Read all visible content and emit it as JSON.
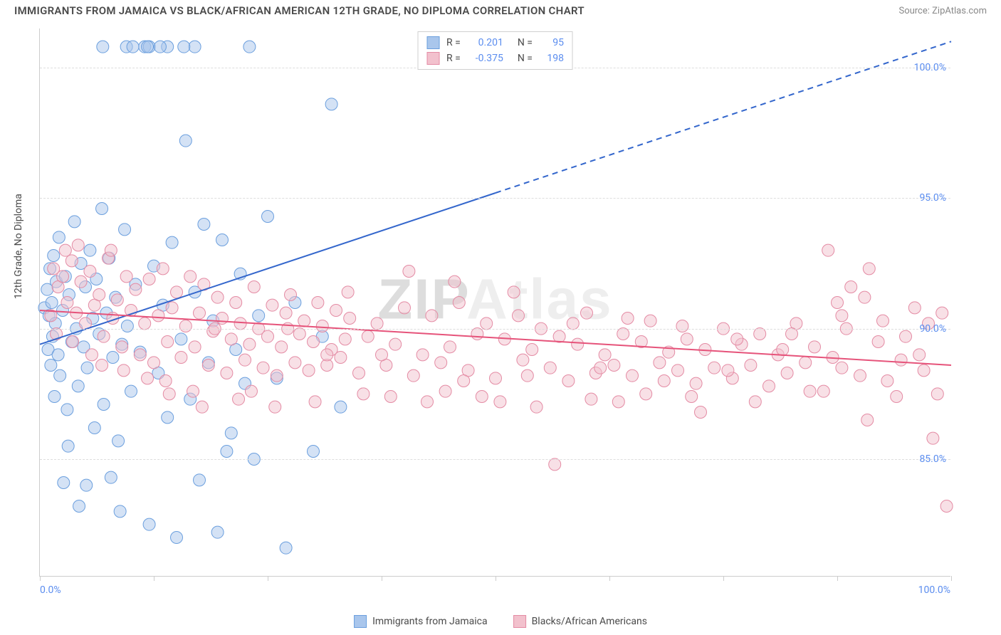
{
  "title": "IMMIGRANTS FROM JAMAICA VS BLACK/AFRICAN AMERICAN 12TH GRADE, NO DIPLOMA CORRELATION CHART",
  "source_label": "Source: ZipAtlas.com",
  "watermark_prefix": "ZIP",
  "watermark_suffix": "Atlas",
  "chart": {
    "type": "scatter",
    "ylabel": "12th Grade, No Diploma",
    "xlim": [
      0,
      100
    ],
    "ylim": [
      80.5,
      101.5
    ],
    "xtick_positions": [
      0,
      12.5,
      25,
      37.5,
      50,
      62.5,
      75,
      87.5,
      100
    ],
    "yticks": [
      85.0,
      90.0,
      95.0,
      100.0
    ],
    "ytick_labels": [
      "85.0%",
      "90.0%",
      "95.0%",
      "100.0%"
    ],
    "x_min_label": "0.0%",
    "x_max_label": "100.0%",
    "background_color": "#ffffff",
    "grid_color": "#dddddd",
    "axis_color": "#cccccc",
    "marker_radius": 8.5,
    "marker_opacity": 0.5,
    "line_width": 2,
    "series": [
      {
        "label": "Immigrants from Jamaica",
        "color_fill": "#a9c6ec",
        "color_stroke": "#6b9fde",
        "line_color": "#3366cc",
        "R": "0.201",
        "N": "95",
        "trend": {
          "x1": 0,
          "y1": 89.4,
          "x2": 100,
          "y2": 101.0,
          "solid_until_x": 50
        },
        "points": [
          [
            0.5,
            90.8
          ],
          [
            0.8,
            91.5
          ],
          [
            0.9,
            89.2
          ],
          [
            1.0,
            90.5
          ],
          [
            1.1,
            92.3
          ],
          [
            1.2,
            88.6
          ],
          [
            1.3,
            91.0
          ],
          [
            1.4,
            89.7
          ],
          [
            1.5,
            92.8
          ],
          [
            1.6,
            87.4
          ],
          [
            1.7,
            90.2
          ],
          [
            1.8,
            91.8
          ],
          [
            2.0,
            89.0
          ],
          [
            2.1,
            93.5
          ],
          [
            2.2,
            88.2
          ],
          [
            2.5,
            90.7
          ],
          [
            2.8,
            92.0
          ],
          [
            3.0,
            86.9
          ],
          [
            3.2,
            91.3
          ],
          [
            3.5,
            89.5
          ],
          [
            3.8,
            94.1
          ],
          [
            4.0,
            90.0
          ],
          [
            4.2,
            87.8
          ],
          [
            4.5,
            92.5
          ],
          [
            4.8,
            89.3
          ],
          [
            5.0,
            91.6
          ],
          [
            5.2,
            88.5
          ],
          [
            5.5,
            93.0
          ],
          [
            5.8,
            90.4
          ],
          [
            6.0,
            86.2
          ],
          [
            6.2,
            91.9
          ],
          [
            6.5,
            89.8
          ],
          [
            6.8,
            94.6
          ],
          [
            7.0,
            87.1
          ],
          [
            7.3,
            90.6
          ],
          [
            7.6,
            92.7
          ],
          [
            8.0,
            88.9
          ],
          [
            8.3,
            91.2
          ],
          [
            8.6,
            85.7
          ],
          [
            9.0,
            89.4
          ],
          [
            9.3,
            93.8
          ],
          [
            9.6,
            90.1
          ],
          [
            10.0,
            87.6
          ],
          [
            10.5,
            91.7
          ],
          [
            11.0,
            89.1
          ],
          [
            11.5,
            100.8
          ],
          [
            12.0,
            100.8
          ],
          [
            12.0,
            82.5
          ],
          [
            12.5,
            92.4
          ],
          [
            13.0,
            88.3
          ],
          [
            13.5,
            90.9
          ],
          [
            14.0,
            100.8
          ],
          [
            14.0,
            86.6
          ],
          [
            14.5,
            93.3
          ],
          [
            15.0,
            82.0
          ],
          [
            15.5,
            89.6
          ],
          [
            16.0,
            97.2
          ],
          [
            16.5,
            87.3
          ],
          [
            17.0,
            100.8
          ],
          [
            17.0,
            91.4
          ],
          [
            17.5,
            84.2
          ],
          [
            18.0,
            94.0
          ],
          [
            18.5,
            88.7
          ],
          [
            19.0,
            90.3
          ],
          [
            19.5,
            82.2
          ],
          [
            20.0,
            93.4
          ],
          [
            20.5,
            85.3
          ],
          [
            21.0,
            86.0
          ],
          [
            21.5,
            89.2
          ],
          [
            22.0,
            92.1
          ],
          [
            22.5,
            87.9
          ],
          [
            23.0,
            100.8
          ],
          [
            23.5,
            85.0
          ],
          [
            24.0,
            90.5
          ],
          [
            25.0,
            94.3
          ],
          [
            26.0,
            88.1
          ],
          [
            27.0,
            81.6
          ],
          [
            28.0,
            91.0
          ],
          [
            30.0,
            85.3
          ],
          [
            31.0,
            89.7
          ],
          [
            32.0,
            98.6
          ],
          [
            33.0,
            87.0
          ],
          [
            9.5,
            100.8
          ],
          [
            10.2,
            100.8
          ],
          [
            6.9,
            100.8
          ],
          [
            5.1,
            84.0
          ],
          [
            4.3,
            83.2
          ],
          [
            3.1,
            85.5
          ],
          [
            2.6,
            84.1
          ],
          [
            7.8,
            84.3
          ],
          [
            8.8,
            83.0
          ],
          [
            11.8,
            100.8
          ],
          [
            13.2,
            100.8
          ],
          [
            15.8,
            100.8
          ]
        ]
      },
      {
        "label": "Blacks/African Americans",
        "color_fill": "#f2c1cd",
        "color_stroke": "#e48ba4",
        "line_color": "#e6537a",
        "R": "-0.375",
        "N": "198",
        "trend": {
          "x1": 0,
          "y1": 90.7,
          "x2": 100,
          "y2": 88.6,
          "solid_until_x": 100
        },
        "points": [
          [
            1.5,
            92.3
          ],
          [
            2.0,
            91.6
          ],
          [
            2.5,
            92.0
          ],
          [
            3.0,
            91.0
          ],
          [
            3.5,
            92.6
          ],
          [
            4.0,
            90.6
          ],
          [
            4.5,
            91.8
          ],
          [
            5.0,
            90.2
          ],
          [
            5.5,
            92.2
          ],
          [
            6.0,
            90.9
          ],
          [
            6.5,
            91.3
          ],
          [
            7.0,
            89.7
          ],
          [
            7.5,
            92.7
          ],
          [
            8.0,
            90.4
          ],
          [
            8.5,
            91.1
          ],
          [
            9.0,
            89.3
          ],
          [
            9.5,
            92.0
          ],
          [
            10.0,
            90.7
          ],
          [
            10.5,
            91.5
          ],
          [
            11.0,
            89.0
          ],
          [
            11.5,
            90.2
          ],
          [
            12.0,
            91.9
          ],
          [
            12.5,
            88.7
          ],
          [
            13.0,
            90.5
          ],
          [
            13.5,
            92.3
          ],
          [
            14.0,
            89.5
          ],
          [
            14.5,
            90.8
          ],
          [
            15.0,
            91.4
          ],
          [
            15.5,
            88.9
          ],
          [
            16.0,
            90.1
          ],
          [
            16.5,
            92.0
          ],
          [
            17.0,
            89.3
          ],
          [
            17.5,
            90.6
          ],
          [
            18.0,
            91.7
          ],
          [
            18.5,
            88.6
          ],
          [
            19.0,
            89.9
          ],
          [
            19.5,
            91.2
          ],
          [
            20.0,
            90.4
          ],
          [
            20.5,
            88.3
          ],
          [
            21.0,
            89.6
          ],
          [
            21.5,
            91.0
          ],
          [
            22.0,
            90.2
          ],
          [
            22.5,
            88.8
          ],
          [
            23.0,
            89.4
          ],
          [
            23.5,
            91.6
          ],
          [
            24.0,
            90.0
          ],
          [
            24.5,
            88.5
          ],
          [
            25.0,
            89.7
          ],
          [
            25.5,
            90.9
          ],
          [
            26.0,
            88.2
          ],
          [
            26.5,
            89.3
          ],
          [
            27.0,
            90.6
          ],
          [
            27.5,
            91.3
          ],
          [
            28.0,
            88.7
          ],
          [
            28.5,
            89.8
          ],
          [
            29.0,
            90.3
          ],
          [
            29.5,
            88.4
          ],
          [
            30.0,
            89.5
          ],
          [
            30.5,
            91.0
          ],
          [
            31.0,
            90.1
          ],
          [
            31.5,
            88.6
          ],
          [
            32.0,
            89.2
          ],
          [
            32.5,
            90.7
          ],
          [
            33.0,
            88.9
          ],
          [
            33.5,
            89.6
          ],
          [
            34.0,
            90.4
          ],
          [
            35.0,
            88.3
          ],
          [
            36.0,
            89.7
          ],
          [
            37.0,
            90.2
          ],
          [
            38.0,
            88.6
          ],
          [
            39.0,
            89.4
          ],
          [
            40.0,
            90.8
          ],
          [
            41.0,
            88.2
          ],
          [
            42.0,
            89.0
          ],
          [
            43.0,
            90.5
          ],
          [
            44.0,
            88.7
          ],
          [
            45.0,
            89.3
          ],
          [
            46.0,
            91.0
          ],
          [
            47.0,
            88.4
          ],
          [
            48.0,
            89.8
          ],
          [
            49.0,
            90.2
          ],
          [
            50.0,
            88.1
          ],
          [
            51.0,
            89.6
          ],
          [
            52.0,
            91.4
          ],
          [
            53.0,
            88.8
          ],
          [
            54.0,
            89.2
          ],
          [
            55.0,
            90.0
          ],
          [
            56.0,
            88.5
          ],
          [
            57.0,
            89.7
          ],
          [
            58.0,
            88.0
          ],
          [
            59.0,
            89.4
          ],
          [
            60.0,
            90.6
          ],
          [
            61.0,
            88.3
          ],
          [
            62.0,
            89.0
          ],
          [
            63.0,
            88.6
          ],
          [
            64.0,
            89.8
          ],
          [
            65.0,
            88.2
          ],
          [
            66.0,
            89.5
          ],
          [
            67.0,
            90.3
          ],
          [
            68.0,
            88.7
          ],
          [
            69.0,
            89.1
          ],
          [
            70.0,
            88.4
          ],
          [
            71.0,
            89.6
          ],
          [
            72.0,
            87.9
          ],
          [
            73.0,
            89.2
          ],
          [
            74.0,
            88.5
          ],
          [
            75.0,
            90.0
          ],
          [
            76.0,
            88.1
          ],
          [
            77.0,
            89.4
          ],
          [
            78.0,
            88.6
          ],
          [
            79.0,
            89.8
          ],
          [
            80.0,
            87.8
          ],
          [
            81.0,
            89.0
          ],
          [
            82.0,
            88.3
          ],
          [
            83.0,
            90.2
          ],
          [
            84.0,
            88.7
          ],
          [
            85.0,
            89.3
          ],
          [
            86.0,
            87.6
          ],
          [
            87.0,
            88.9
          ],
          [
            88.0,
            90.5
          ],
          [
            89.0,
            91.6
          ],
          [
            90.0,
            88.2
          ],
          [
            91.0,
            92.3
          ],
          [
            92.0,
            89.5
          ],
          [
            93.0,
            88.0
          ],
          [
            94.0,
            87.4
          ],
          [
            95.0,
            89.7
          ],
          [
            96.0,
            90.8
          ],
          [
            97.0,
            88.4
          ],
          [
            98.0,
            85.8
          ],
          [
            99.0,
            90.6
          ],
          [
            99.5,
            83.2
          ],
          [
            56.5,
            84.8
          ],
          [
            45.5,
            91.8
          ],
          [
            98.5,
            87.5
          ],
          [
            86.5,
            93.0
          ],
          [
            88.5,
            90.0
          ],
          [
            90.5,
            91.2
          ],
          [
            87.5,
            91.0
          ],
          [
            63.5,
            87.2
          ],
          [
            71.5,
            87.4
          ],
          [
            40.5,
            92.2
          ],
          [
            14.2,
            87.5
          ],
          [
            17.8,
            87.0
          ],
          [
            21.8,
            87.3
          ],
          [
            25.8,
            87.0
          ],
          [
            30.2,
            87.2
          ],
          [
            35.5,
            87.5
          ],
          [
            42.5,
            87.2
          ],
          [
            48.5,
            87.4
          ],
          [
            54.5,
            87.0
          ],
          [
            60.5,
            87.3
          ],
          [
            66.5,
            87.5
          ],
          [
            72.5,
            86.8
          ],
          [
            78.5,
            87.2
          ],
          [
            84.5,
            87.6
          ],
          [
            90.8,
            86.5
          ],
          [
            96.5,
            89.0
          ],
          [
            2.8,
            93.0
          ],
          [
            4.2,
            93.2
          ],
          [
            5.7,
            89.0
          ],
          [
            3.6,
            89.5
          ],
          [
            6.8,
            88.6
          ],
          [
            9.2,
            88.4
          ],
          [
            11.8,
            88.1
          ],
          [
            13.8,
            88.0
          ],
          [
            1.2,
            90.5
          ],
          [
            1.8,
            89.8
          ],
          [
            7.8,
            93.0
          ],
          [
            16.8,
            87.6
          ],
          [
            52.5,
            90.5
          ],
          [
            58.5,
            90.2
          ],
          [
            64.5,
            90.4
          ],
          [
            70.5,
            90.1
          ],
          [
            76.5,
            89.6
          ],
          [
            82.5,
            89.8
          ],
          [
            92.5,
            90.3
          ],
          [
            38.5,
            87.4
          ],
          [
            44.5,
            87.6
          ],
          [
            50.5,
            87.2
          ],
          [
            33.8,
            91.4
          ],
          [
            37.5,
            89.0
          ],
          [
            46.5,
            88.0
          ],
          [
            53.5,
            88.2
          ],
          [
            61.5,
            88.5
          ],
          [
            68.5,
            88.0
          ],
          [
            75.5,
            88.4
          ],
          [
            81.5,
            89.2
          ],
          [
            88.0,
            88.5
          ],
          [
            94.5,
            88.8
          ],
          [
            97.5,
            90.2
          ],
          [
            19.2,
            90.0
          ],
          [
            23.2,
            87.6
          ],
          [
            27.2,
            90.0
          ],
          [
            31.5,
            89.0
          ]
        ]
      }
    ]
  },
  "legend_bottom": {
    "items": [
      {
        "label": "Immigrants from Jamaica",
        "swatch_ref": 0
      },
      {
        "label": "Blacks/African Americans",
        "swatch_ref": 1
      }
    ]
  }
}
